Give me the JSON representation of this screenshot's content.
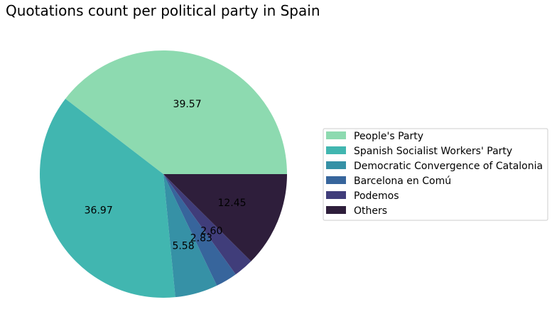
{
  "chart_data": {
    "type": "pie",
    "title": "Quotations count per political party in Spain",
    "categories": [
      "People's Party",
      "Spanish Socialist Workers' Party",
      "Democratic Convergence of Catalonia",
      "Barcelona en Comú",
      "Podemos",
      "Others"
    ],
    "values": [
      39.57,
      36.97,
      5.58,
      2.83,
      2.6,
      12.45
    ],
    "value_labels": [
      "39.57",
      "36.97",
      "5.58",
      "2.83",
      "2.60",
      "12.45"
    ],
    "colors": [
      "#8ddab0",
      "#41b6b0",
      "#3691a6",
      "#37659c",
      "#403d7a",
      "#2e1e3b"
    ],
    "legend_position": "right",
    "start_angle_deg": 0,
    "direction": "counterclockwise"
  }
}
